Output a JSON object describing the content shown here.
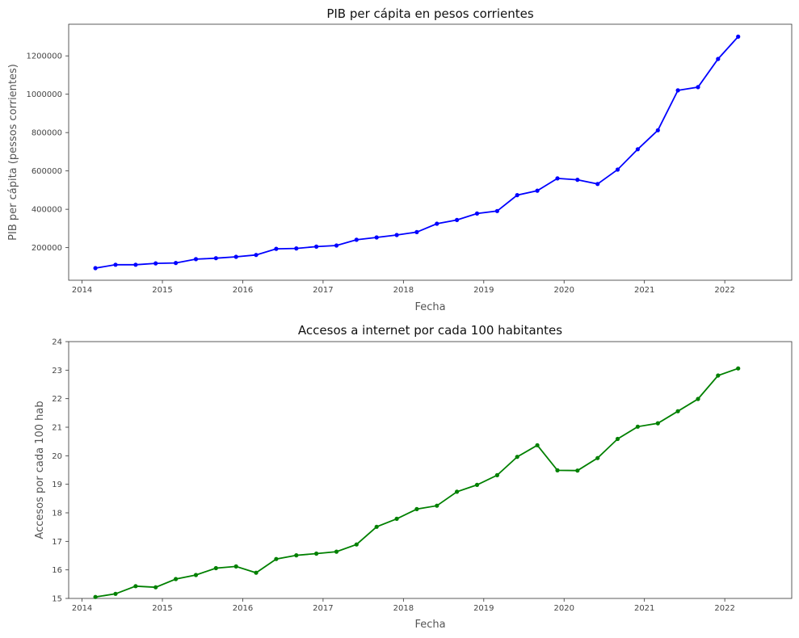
{
  "chart_data": [
    {
      "type": "line",
      "title": "PIB per cápita en pesos corrientes",
      "xlabel": "Fecha",
      "ylabel": "PIB per cápita (pessos corrientes)",
      "x_tick_labels": [
        "2014",
        "2015",
        "2016",
        "2017",
        "2018",
        "2019",
        "2020",
        "2021",
        "2022"
      ],
      "y_tick_labels": [
        "200000",
        "400000",
        "600000",
        "800000",
        "1000000",
        "1200000"
      ],
      "y_ticks": [
        200000,
        400000,
        600000,
        800000,
        1000000,
        1200000
      ],
      "xlim": [
        "2013-11",
        "2022-11"
      ],
      "ylim": [
        30000,
        1365000
      ],
      "grid": false,
      "color": "#0000ff",
      "series": [
        {
          "x": [
            "2014-03",
            "2014-06",
            "2014-09",
            "2014-12",
            "2015-03",
            "2015-06",
            "2015-09",
            "2015-12",
            "2016-03",
            "2016-06",
            "2016-09",
            "2016-12",
            "2017-03",
            "2017-06",
            "2017-09",
            "2017-12",
            "2018-03",
            "2018-06",
            "2018-09",
            "2018-12",
            "2019-03",
            "2019-06",
            "2019-09",
            "2019-12",
            "2020-03",
            "2020-06",
            "2020-09",
            "2020-12",
            "2021-03",
            "2021-06",
            "2021-09",
            "2021-12",
            "2022-03"
          ],
          "values": [
            93000,
            111000,
            111000,
            118000,
            120000,
            140000,
            145000,
            152000,
            162000,
            194000,
            196000,
            205000,
            211000,
            241000,
            253000,
            266000,
            281000,
            325000,
            344000,
            378000,
            391000,
            474000,
            497000,
            561000,
            554000,
            532000,
            607000,
            713000,
            812000,
            1020000,
            1037000,
            1184000,
            1300000
          ]
        }
      ]
    },
    {
      "type": "line",
      "title": "Accesos a internet por cada 100 habitantes",
      "xlabel": "Fecha",
      "ylabel": "Accesos por cada 100 hab",
      "x_tick_labels": [
        "2014",
        "2015",
        "2016",
        "2017",
        "2018",
        "2019",
        "2020",
        "2021",
        "2022"
      ],
      "y_tick_labels": [
        "15",
        "16",
        "17",
        "18",
        "19",
        "20",
        "21",
        "22",
        "23",
        "24"
      ],
      "y_ticks": [
        15,
        16,
        17,
        18,
        19,
        20,
        21,
        22,
        23,
        24
      ],
      "xlim": [
        "2013-11",
        "2022-11"
      ],
      "ylim": [
        15,
        24
      ],
      "grid": false,
      "color": "#008000",
      "series": [
        {
          "x": [
            "2014-03",
            "2014-06",
            "2014-09",
            "2014-12",
            "2015-03",
            "2015-06",
            "2015-09",
            "2015-12",
            "2016-03",
            "2016-06",
            "2016-09",
            "2016-12",
            "2017-03",
            "2017-06",
            "2017-09",
            "2017-12",
            "2018-03",
            "2018-06",
            "2018-09",
            "2018-12",
            "2019-03",
            "2019-06",
            "2019-09",
            "2019-12",
            "2020-03",
            "2020-06",
            "2020-09",
            "2020-12",
            "2021-03",
            "2021-06",
            "2021-09",
            "2021-12",
            "2022-03"
          ],
          "values": [
            15.05,
            15.16,
            15.43,
            15.39,
            15.68,
            15.82,
            16.06,
            16.12,
            15.9,
            16.38,
            16.51,
            16.57,
            16.64,
            16.89,
            17.51,
            17.79,
            18.13,
            18.25,
            18.74,
            18.98,
            19.32,
            19.96,
            20.37,
            19.49,
            19.48,
            19.92,
            20.59,
            21.02,
            21.14,
            21.56,
            21.99,
            22.81,
            23.06
          ]
        }
      ]
    }
  ]
}
